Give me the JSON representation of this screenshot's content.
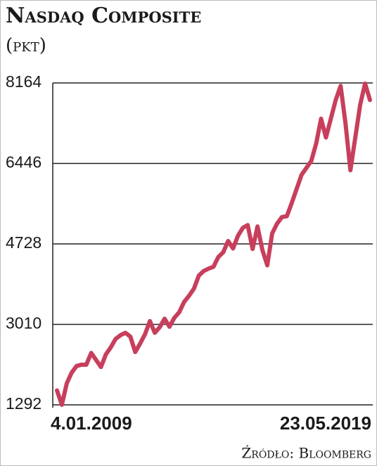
{
  "chart_data": {
    "type": "line",
    "title": "Nasdaq Composite",
    "subtitle": "(pkt)",
    "source": "Źródło: Bloomberg",
    "color": "#c73f5c",
    "categories": [
      "4.01.2009",
      null,
      null,
      null,
      null,
      null,
      null,
      null,
      null,
      null,
      null,
      null,
      null,
      null,
      null,
      null,
      null,
      null,
      null,
      null,
      null,
      null,
      null,
      null,
      null,
      null,
      null,
      null,
      null,
      null,
      null,
      null,
      null,
      null,
      null,
      null,
      null,
      null,
      null,
      null,
      null,
      null,
      null,
      null,
      null,
      null,
      null,
      null,
      null,
      null,
      null,
      null,
      null,
      null,
      null,
      null,
      null,
      null,
      null,
      null,
      null,
      null,
      null,
      null,
      "23.05.2019"
    ],
    "values": [
      1600,
      1293,
      1750,
      1980,
      2120,
      2150,
      2150,
      2400,
      2250,
      2100,
      2370,
      2520,
      2700,
      2780,
      2830,
      2750,
      2420,
      2600,
      2800,
      3080,
      2830,
      2950,
      3130,
      2960,
      3150,
      3270,
      3490,
      3620,
      3770,
      4050,
      4150,
      4200,
      4240,
      4450,
      4550,
      4790,
      4630,
      4900,
      5070,
      5130,
      4620,
      5100,
      4600,
      4270,
      4950,
      5160,
      5300,
      5320,
      5600,
      5900,
      6200,
      6350,
      6500,
      6870,
      7400,
      7000,
      7400,
      7800,
      8100,
      7300,
      6300,
      7000,
      7700,
      8150,
      7800
    ],
    "ylim": [
      1292,
      8164
    ],
    "yticks": [
      1292,
      3010,
      4728,
      6446,
      8164
    ],
    "grid": true
  }
}
